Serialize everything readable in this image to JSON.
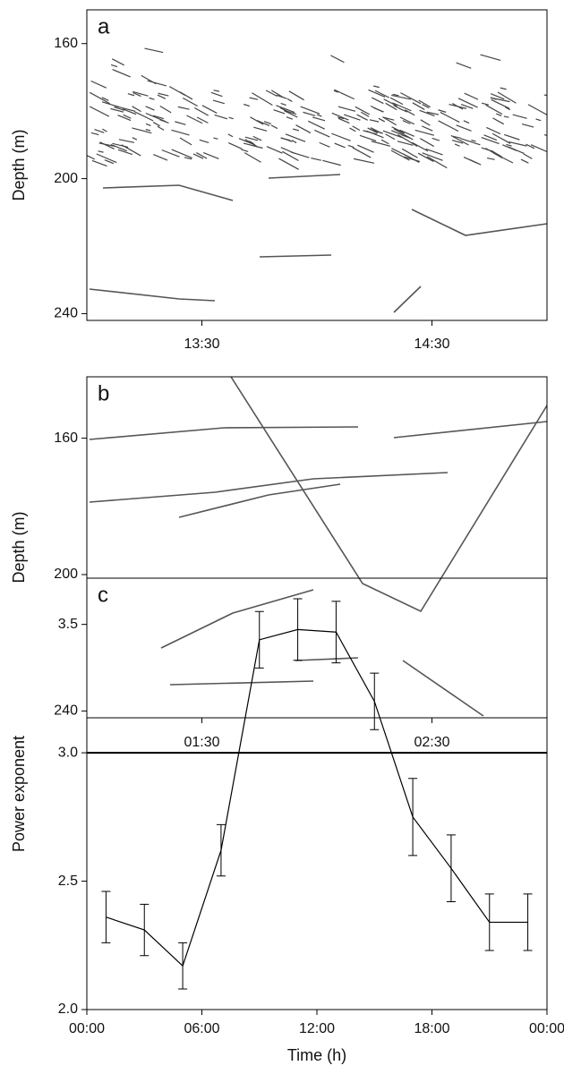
{
  "chart_data": [
    {
      "type": "echogram",
      "label": "a",
      "y_label": "Depth (m)",
      "invert_y": true,
      "ylim": [
        150,
        242
      ],
      "yticks": [
        160,
        200,
        240
      ],
      "xlim": [
        780,
        900
      ],
      "xticks": [
        {
          "value": 810,
          "label": "13:30"
        },
        {
          "value": 870,
          "label": "14:30"
        }
      ]
    },
    {
      "type": "echogram",
      "label": "b",
      "y_label": "Depth (m)",
      "invert_y": true,
      "ylim": [
        142,
        242
      ],
      "yticks": [
        160,
        200,
        240
      ],
      "xlim": [
        60,
        180
      ],
      "xticks": [
        {
          "value": 90,
          "label": "01:30"
        },
        {
          "value": 150,
          "label": "02:30"
        }
      ]
    },
    {
      "type": "line",
      "label": "c",
      "y_label": "Power exponent",
      "x_label": "Time (h)",
      "x": [
        1,
        3,
        5,
        7,
        9,
        11,
        13,
        15,
        17,
        19,
        21,
        23
      ],
      "values": [
        2.36,
        2.31,
        2.17,
        2.62,
        3.44,
        3.48,
        3.47,
        3.2,
        2.75,
        2.55,
        2.34,
        2.34
      ],
      "errors": [
        0.1,
        0.1,
        0.09,
        0.1,
        0.11,
        0.12,
        0.12,
        0.11,
        0.15,
        0.13,
        0.11,
        0.11
      ],
      "color": "#000000",
      "reference_line": 3,
      "ylim": [
        2,
        3.68
      ],
      "yticks": [
        {
          "value": 2,
          "label": "2.0"
        },
        2.5,
        {
          "value": 3,
          "label": "3.0"
        },
        3.5
      ],
      "xlim": [
        0,
        24
      ],
      "xticks": [
        {
          "value": 0,
          "label": "00:00"
        },
        {
          "value": 6,
          "label": "06:00"
        },
        {
          "value": 12,
          "label": "12:00"
        },
        {
          "value": 18,
          "label": "18:00"
        },
        {
          "value": 24,
          "label": "00:00"
        }
      ]
    }
  ]
}
